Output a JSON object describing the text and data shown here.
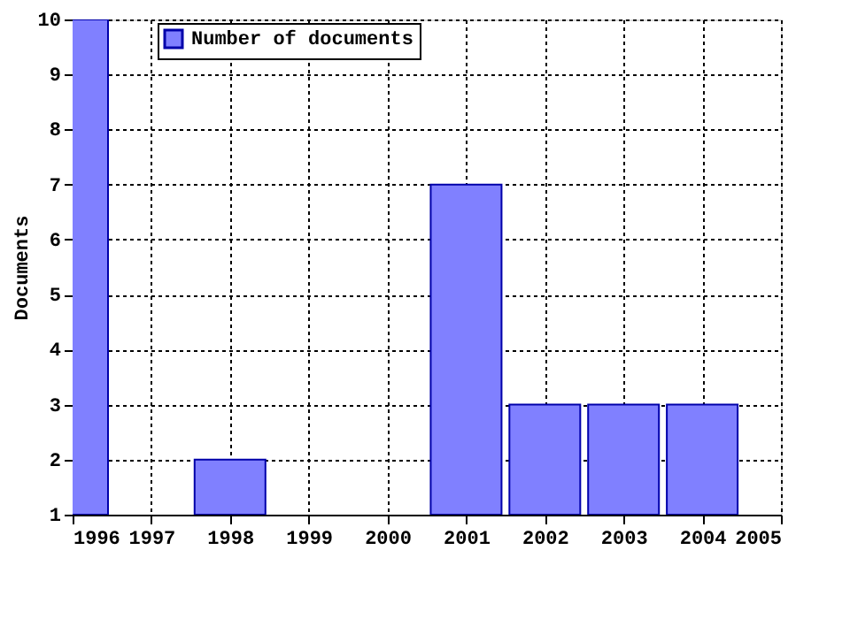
{
  "chart_data": {
    "type": "bar",
    "ylabel": "Documents",
    "x": [
      1996,
      1998,
      2001,
      2002,
      2003,
      2004
    ],
    "series": [
      {
        "name": "Number of documents",
        "color": "#8080ff",
        "values": [
          10,
          2,
          7,
          3,
          3,
          3
        ]
      }
    ],
    "xlim": [
      1996,
      2005
    ],
    "xticks": [
      1996,
      1997,
      1998,
      1999,
      2000,
      2001,
      2002,
      2003,
      2004,
      2005
    ],
    "ylim": [
      1,
      10
    ],
    "yticks": [
      1,
      2,
      3,
      4,
      5,
      6,
      7,
      8,
      9,
      10
    ],
    "grid": true,
    "legend": "top left"
  }
}
